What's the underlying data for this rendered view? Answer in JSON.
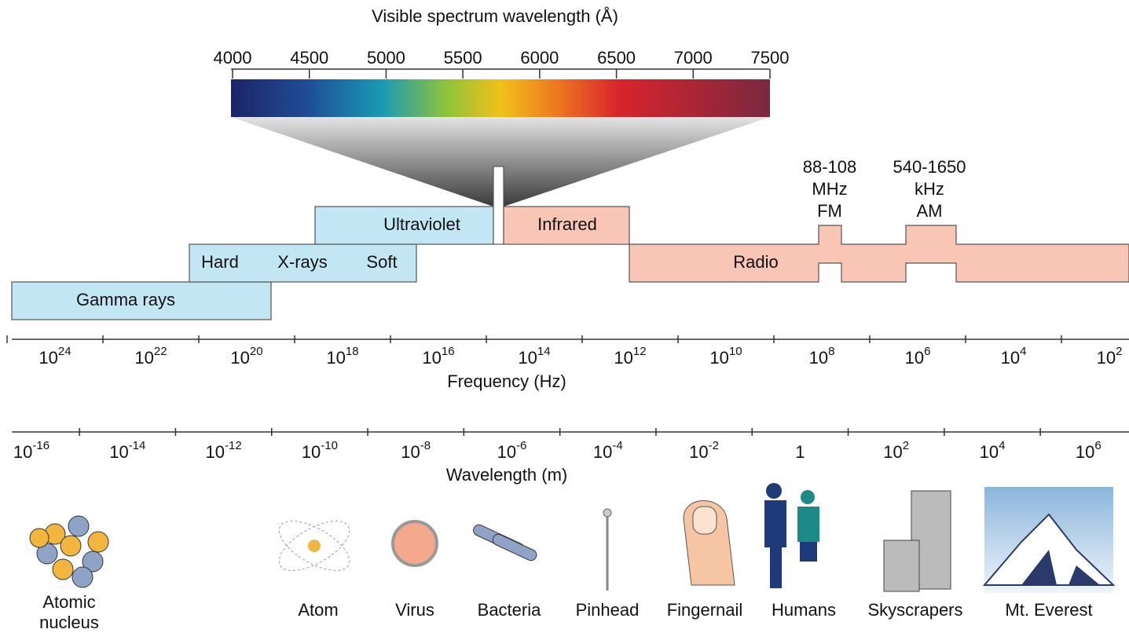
{
  "visible": {
    "title": "Visible spectrum wavelength (Å)",
    "ticks": [
      4000,
      4500,
      5000,
      5500,
      6000,
      6500,
      7000,
      7500
    ]
  },
  "bands": {
    "gamma": "Gamma rays",
    "xray_hard": "Hard",
    "xray": "X-rays",
    "xray_soft": "Soft",
    "ultraviolet": "Ultraviolet",
    "infrared": "Infrared",
    "radio": "Radio",
    "fm": [
      "88-108",
      "MHz",
      "FM"
    ],
    "am": [
      "540-1650",
      "kHz",
      "AM"
    ]
  },
  "frequency_axis": {
    "title": "Frequency (Hz)",
    "ticks": [
      {
        "base": "10",
        "exp": "24"
      },
      {
        "base": "10",
        "exp": "22"
      },
      {
        "base": "10",
        "exp": "20"
      },
      {
        "base": "10",
        "exp": "18"
      },
      {
        "base": "10",
        "exp": "16"
      },
      {
        "base": "10",
        "exp": "14"
      },
      {
        "base": "10",
        "exp": "12"
      },
      {
        "base": "10",
        "exp": "10"
      },
      {
        "base": "10",
        "exp": "8"
      },
      {
        "base": "10",
        "exp": "6"
      },
      {
        "base": "10",
        "exp": "4"
      },
      {
        "base": "10",
        "exp": "2"
      }
    ]
  },
  "wavelength_axis": {
    "title": "Wavelength (m)",
    "ticks": [
      {
        "base": "10",
        "exp": "-16"
      },
      {
        "base": "10",
        "exp": "-14"
      },
      {
        "base": "10",
        "exp": "-12"
      },
      {
        "base": "10",
        "exp": "-10"
      },
      {
        "base": "10",
        "exp": "-8"
      },
      {
        "base": "10",
        "exp": "-6"
      },
      {
        "base": "10",
        "exp": "-4"
      },
      {
        "base": "10",
        "exp": "-2"
      },
      {
        "base": "1"
      },
      {
        "base": "10",
        "exp": "2"
      },
      {
        "base": "10",
        "exp": "4"
      },
      {
        "base": "10",
        "exp": "6"
      }
    ]
  },
  "objects": [
    [
      "Atomic",
      "nucleus"
    ],
    [
      "Atom"
    ],
    [
      "Virus"
    ],
    [
      "Bacteria"
    ],
    [
      "Pinhead"
    ],
    [
      "Fingernail"
    ],
    [
      "Humans"
    ],
    [
      "Skyscrapers"
    ],
    [
      "Mt. Everest"
    ]
  ]
}
